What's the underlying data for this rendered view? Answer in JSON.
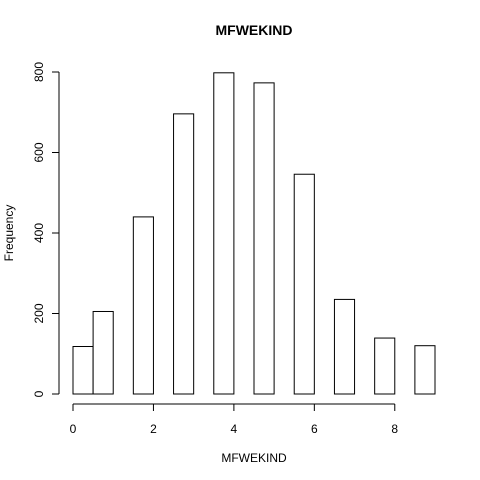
{
  "chart_data": {
    "type": "bar",
    "title": "MFWEKIND",
    "xlabel": "MFWEKIND",
    "ylabel": "Frequency",
    "xlim": [
      0,
      9
    ],
    "ylim": [
      0,
      800
    ],
    "bins": [
      {
        "x0": 0.0,
        "x1": 0.5,
        "value": 118
      },
      {
        "x0": 0.5,
        "x1": 1.0,
        "value": 205
      },
      {
        "x0": 1.0,
        "x1": 1.5,
        "value": 0
      },
      {
        "x0": 1.5,
        "x1": 2.0,
        "value": 440
      },
      {
        "x0": 2.0,
        "x1": 2.5,
        "value": 0
      },
      {
        "x0": 2.5,
        "x1": 3.0,
        "value": 696
      },
      {
        "x0": 3.0,
        "x1": 3.5,
        "value": 0
      },
      {
        "x0": 3.5,
        "x1": 4.0,
        "value": 798
      },
      {
        "x0": 4.0,
        "x1": 4.5,
        "value": 0
      },
      {
        "x0": 4.5,
        "x1": 5.0,
        "value": 773
      },
      {
        "x0": 5.0,
        "x1": 5.5,
        "value": 0
      },
      {
        "x0": 5.5,
        "x1": 6.0,
        "value": 546
      },
      {
        "x0": 6.0,
        "x1": 6.5,
        "value": 0
      },
      {
        "x0": 6.5,
        "x1": 7.0,
        "value": 235
      },
      {
        "x0": 7.0,
        "x1": 7.5,
        "value": 0
      },
      {
        "x0": 7.5,
        "x1": 8.0,
        "value": 139
      },
      {
        "x0": 8.0,
        "x1": 8.5,
        "value": 0
      },
      {
        "x0": 8.5,
        "x1": 9.0,
        "value": 120
      }
    ],
    "x_ticks": [
      0,
      2,
      4,
      6,
      8
    ],
    "y_ticks": [
      0,
      200,
      400,
      600,
      800
    ],
    "grid": false,
    "legend": "none",
    "bar_fill": "#ffffff",
    "bar_stroke": "#000000"
  }
}
